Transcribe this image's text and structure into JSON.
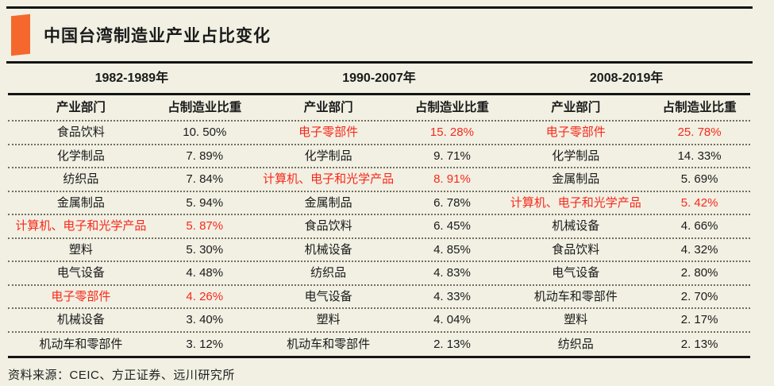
{
  "page": {
    "background": "#f1f0e3",
    "accent_orange": "#f4682e",
    "highlight_red": "#f8291b",
    "line_black": "#141414"
  },
  "header": {
    "title": "中国台湾制造业产业占比变化"
  },
  "footer": {
    "source": "资料来源：CEIC、方正证券、远川研究所"
  },
  "chart_data": {
    "type": "table",
    "title": "中国台湾制造业产业占比变化",
    "column_headers": {
      "sector": "产业部门",
      "share": "占制造业比重"
    },
    "highlighted_sectors": [
      "电子零部件",
      "计算机、电子和光学产品"
    ],
    "groups": [
      {
        "period": "1982-1989年",
        "rows": [
          {
            "sector": "食品饮料",
            "share_display": "10. 50%",
            "share_pct": 10.5,
            "highlight": false
          },
          {
            "sector": "化学制品",
            "share_display": "7. 89%",
            "share_pct": 7.89,
            "highlight": false
          },
          {
            "sector": "纺织品",
            "share_display": "7. 84%",
            "share_pct": 7.84,
            "highlight": false
          },
          {
            "sector": "金属制品",
            "share_display": "5. 94%",
            "share_pct": 5.94,
            "highlight": false
          },
          {
            "sector": "计算机、电子和光学产品",
            "share_display": "5. 87%",
            "share_pct": 5.87,
            "highlight": true
          },
          {
            "sector": "塑料",
            "share_display": "5. 30%",
            "share_pct": 5.3,
            "highlight": false
          },
          {
            "sector": "电气设备",
            "share_display": "4. 48%",
            "share_pct": 4.48,
            "highlight": false
          },
          {
            "sector": "电子零部件",
            "share_display": "4. 26%",
            "share_pct": 4.26,
            "highlight": true
          },
          {
            "sector": "机械设备",
            "share_display": "3. 40%",
            "share_pct": 3.4,
            "highlight": false
          },
          {
            "sector": "机动车和零部件",
            "share_display": "3. 12%",
            "share_pct": 3.12,
            "highlight": false
          }
        ]
      },
      {
        "period": "1990-2007年",
        "rows": [
          {
            "sector": "电子零部件",
            "share_display": "15. 28%",
            "share_pct": 15.28,
            "highlight": true
          },
          {
            "sector": "化学制品",
            "share_display": "9. 71%",
            "share_pct": 9.71,
            "highlight": false
          },
          {
            "sector": "计算机、电子和光学产品",
            "share_display": "8. 91%",
            "share_pct": 8.91,
            "highlight": true
          },
          {
            "sector": "金属制品",
            "share_display": "6. 78%",
            "share_pct": 6.78,
            "highlight": false
          },
          {
            "sector": "食品饮料",
            "share_display": "6. 45%",
            "share_pct": 6.45,
            "highlight": false
          },
          {
            "sector": "机械设备",
            "share_display": "4. 85%",
            "share_pct": 4.85,
            "highlight": false
          },
          {
            "sector": "纺织品",
            "share_display": "4. 83%",
            "share_pct": 4.83,
            "highlight": false
          },
          {
            "sector": "电气设备",
            "share_display": "4. 33%",
            "share_pct": 4.33,
            "highlight": false
          },
          {
            "sector": "塑料",
            "share_display": "4. 04%",
            "share_pct": 4.04,
            "highlight": false
          },
          {
            "sector": "机动车和零部件",
            "share_display": "2. 13%",
            "share_pct": 2.13,
            "highlight": false
          }
        ]
      },
      {
        "period": "2008-2019年",
        "rows": [
          {
            "sector": "电子零部件",
            "share_display": "25. 78%",
            "share_pct": 25.78,
            "highlight": true
          },
          {
            "sector": "化学制品",
            "share_display": "14. 33%",
            "share_pct": 14.33,
            "highlight": false
          },
          {
            "sector": "金属制品",
            "share_display": "5. 69%",
            "share_pct": 5.69,
            "highlight": false
          },
          {
            "sector": "计算机、电子和光学产品",
            "share_display": "5. 42%",
            "share_pct": 5.42,
            "highlight": true
          },
          {
            "sector": "机械设备",
            "share_display": "4. 66%",
            "share_pct": 4.66,
            "highlight": false
          },
          {
            "sector": "食品饮料",
            "share_display": "4. 32%",
            "share_pct": 4.32,
            "highlight": false
          },
          {
            "sector": "电气设备",
            "share_display": "2. 80%",
            "share_pct": 2.8,
            "highlight": false
          },
          {
            "sector": "机动车和零部件",
            "share_display": "2. 70%",
            "share_pct": 2.7,
            "highlight": false
          },
          {
            "sector": "塑料",
            "share_display": "2. 17%",
            "share_pct": 2.17,
            "highlight": false
          },
          {
            "sector": "纺织品",
            "share_display": "2. 13%",
            "share_pct": 2.13,
            "highlight": false
          }
        ]
      }
    ],
    "source": "资料来源：CEIC、方正证券、远川研究所"
  }
}
